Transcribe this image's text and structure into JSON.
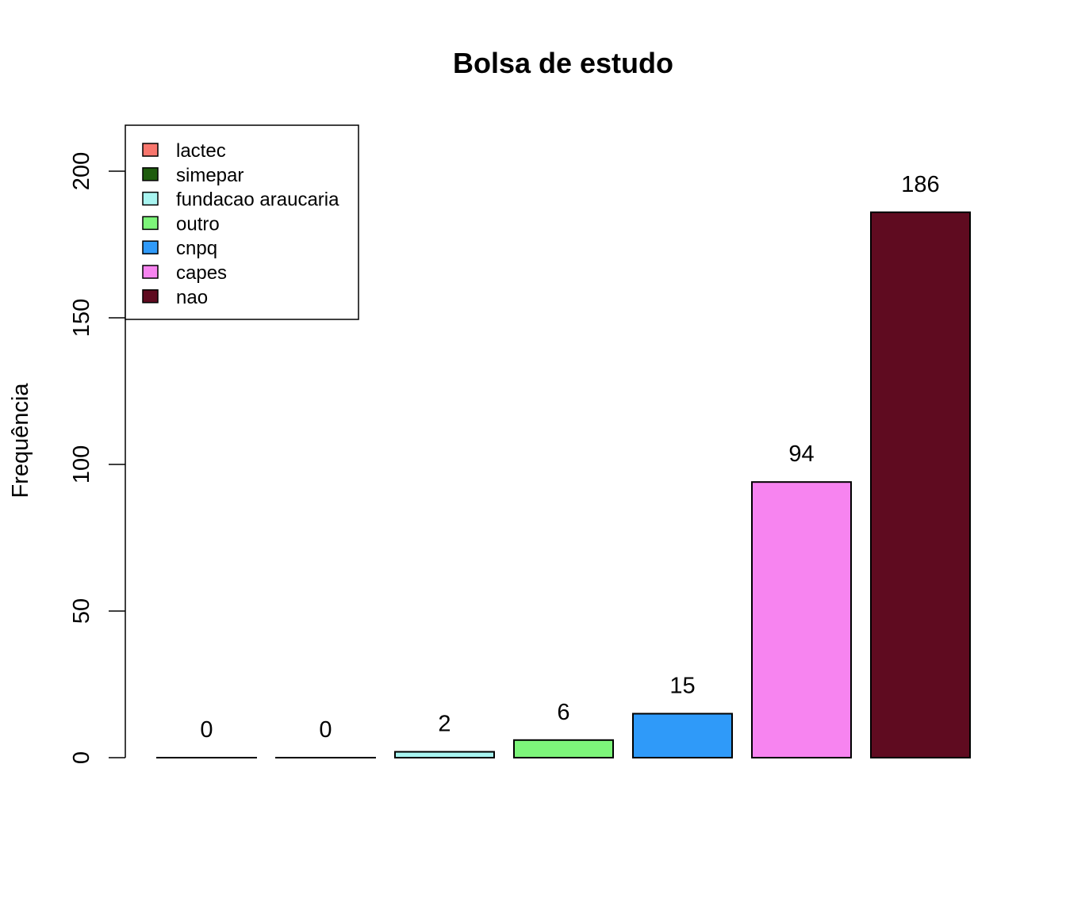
{
  "chart_data": {
    "type": "bar",
    "title": "Bolsa de estudo",
    "xlabel": "",
    "ylabel": "Frequência",
    "ylim": [
      0,
      200
    ],
    "yticks": [
      0,
      50,
      100,
      150,
      200
    ],
    "categories": [
      "lactec",
      "simepar",
      "fundacao araucaria",
      "outro",
      "cnpq",
      "capes",
      "nao"
    ],
    "values": [
      0,
      0,
      2,
      6,
      15,
      94,
      186
    ],
    "data_labels": [
      "0",
      "0",
      "2",
      "6",
      "15",
      "94",
      "186"
    ],
    "colors": [
      "#f8766d",
      "#1e5c0e",
      "#a8f4f0",
      "#7df57a",
      "#2f9af9",
      "#f784f0",
      "#5f0b20"
    ],
    "legend": {
      "placement": "top-left",
      "entries": [
        "lactec",
        "simepar",
        "fundacao araucaria",
        "outro",
        "cnpq",
        "capes",
        "nao"
      ]
    },
    "grid": false
  }
}
